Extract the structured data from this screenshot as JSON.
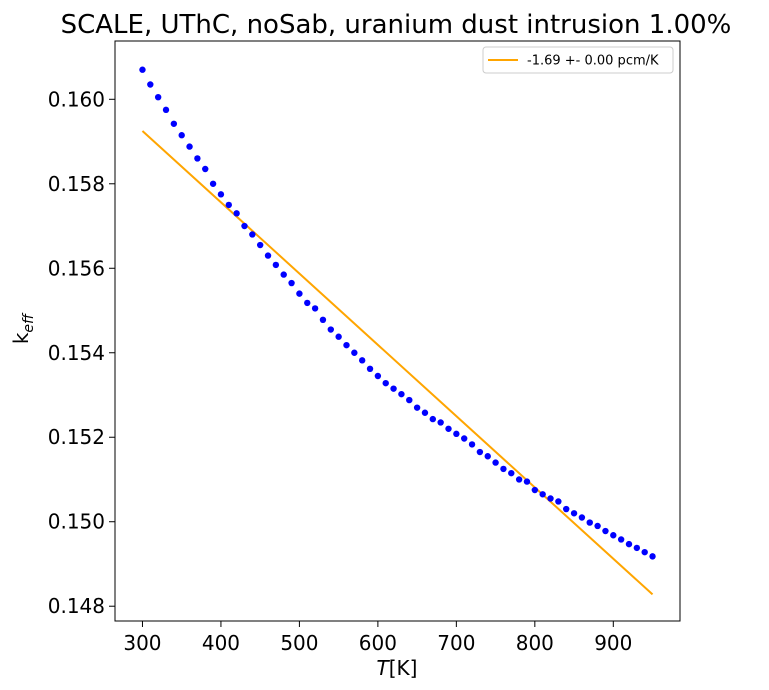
{
  "chart_data": {
    "type": "scatter",
    "title": "SCALE, UThC, noSab, uranium dust intrusion  1.00%",
    "xlabel": "T[K]",
    "xlabel_main": "T",
    "xlabel_unit": "[K]",
    "ylabel": "k_eff",
    "ylabel_main": "k",
    "ylabel_sub": "eff",
    "xlim": [
      265,
      985
    ],
    "ylim": [
      0.14765,
      0.16138
    ],
    "x_ticks": [
      300,
      400,
      500,
      600,
      700,
      800,
      900
    ],
    "y_ticks": [
      0.148,
      0.15,
      0.152,
      0.154,
      0.156,
      0.158,
      0.16
    ],
    "x_tick_labels": [
      "300",
      "400",
      "500",
      "600",
      "700",
      "800",
      "900"
    ],
    "y_tick_labels": [
      "0.148",
      "0.150",
      "0.152",
      "0.154",
      "0.156",
      "0.158",
      "0.160"
    ],
    "grid": false,
    "legend_position": "top-right",
    "series": [
      {
        "kind": "points",
        "color": "#0000ff",
        "x": [
          300,
          310,
          320,
          330,
          340,
          350,
          360,
          370,
          380,
          390,
          400,
          410,
          420,
          430,
          440,
          450,
          460,
          470,
          480,
          490,
          500,
          510,
          520,
          530,
          540,
          550,
          560,
          570,
          580,
          590,
          600,
          610,
          620,
          630,
          640,
          650,
          660,
          670,
          680,
          690,
          700,
          710,
          720,
          730,
          740,
          750,
          760,
          770,
          780,
          790,
          800,
          810,
          820,
          830,
          840,
          850,
          860,
          870,
          880,
          890,
          900,
          910,
          920,
          930,
          940,
          950
        ],
        "y": [
          0.1607,
          0.16035,
          0.16005,
          0.15975,
          0.15942,
          0.15915,
          0.15888,
          0.1586,
          0.15835,
          0.158,
          0.15775,
          0.1575,
          0.1573,
          0.157,
          0.1568,
          0.15655,
          0.1563,
          0.15608,
          0.15585,
          0.15565,
          0.1554,
          0.15518,
          0.15505,
          0.15478,
          0.15455,
          0.15438,
          0.15418,
          0.154,
          0.15382,
          0.15362,
          0.15345,
          0.15328,
          0.15315,
          0.15302,
          0.15288,
          0.1527,
          0.15258,
          0.15243,
          0.15235,
          0.1522,
          0.15208,
          0.15197,
          0.15183,
          0.15165,
          0.15155,
          0.1514,
          0.15125,
          0.15115,
          0.151,
          0.15095,
          0.15075,
          0.15065,
          0.15055,
          0.15048,
          0.1503,
          0.1502,
          0.1501,
          0.14998,
          0.1499,
          0.14978,
          0.14968,
          0.14958,
          0.14947,
          0.14938,
          0.14928,
          0.14918
        ]
      },
      {
        "kind": "line",
        "name": "-1.69 +- 0.00 pcm/K",
        "color": "#ffa500",
        "x": [
          300,
          950
        ],
        "y": [
          0.15925,
          0.14828
        ]
      }
    ]
  }
}
